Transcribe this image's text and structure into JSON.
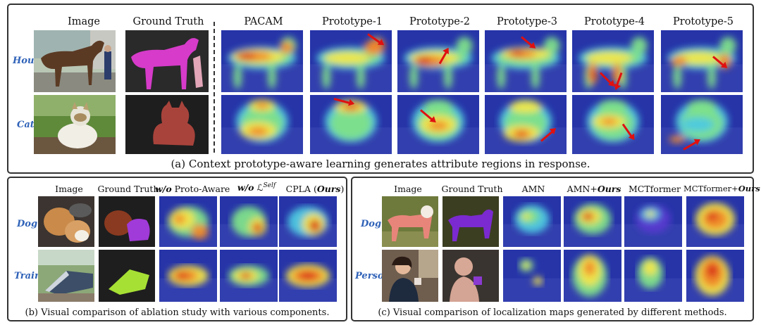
{
  "panel_a": {
    "columns": [
      "Image",
      "Ground Truth",
      "PACAM",
      "Prototype-1",
      "Prototype-2",
      "Prototype-3",
      "Prototype-4",
      "Prototype-5"
    ],
    "rows": [
      "House",
      "Cat"
    ],
    "caption": "(a) Context prototype-aware learning generates attribute regions in response."
  },
  "panel_b": {
    "columns": [
      "Image",
      "Ground Truth",
      "w/o Proto-Aware",
      "w/o ℒ",
      "CPLA (Ours)"
    ],
    "col3_prefix": "w/o",
    "col3_rest": " Proto-Aware",
    "col4_prefix": "w/o",
    "col4_symbol": " ℒ",
    "col4_sup": "Self",
    "col5_main": "CPLA (",
    "col5_ours": "Ours",
    "col5_end": ")",
    "rows": [
      "Dog",
      "Train"
    ],
    "caption": "(b) Visual comparison of ablation study with various components."
  },
  "panel_c": {
    "columns": [
      "Image",
      "Ground Truth",
      "AMN",
      "AMN+Ours",
      "MCTformer",
      "MCTformer+Ours"
    ],
    "col4_main": "AMN+",
    "col4_ours": "Ours",
    "col6_main": "MCTformer+",
    "col6_ours": "Ours",
    "rows": [
      "Dog",
      "Person"
    ],
    "caption": "(c) Visual comparison of localization maps generated by different methods."
  },
  "colors": {
    "accent_label": "#2f62b8",
    "arrow": "#e01010",
    "heat_cold": "#1e2a9c",
    "heat_hot": "#e03010",
    "gt_magenta": "#d63bc9",
    "gt_purple": "#7a2ad0",
    "gt_lime": "#a6e034"
  }
}
